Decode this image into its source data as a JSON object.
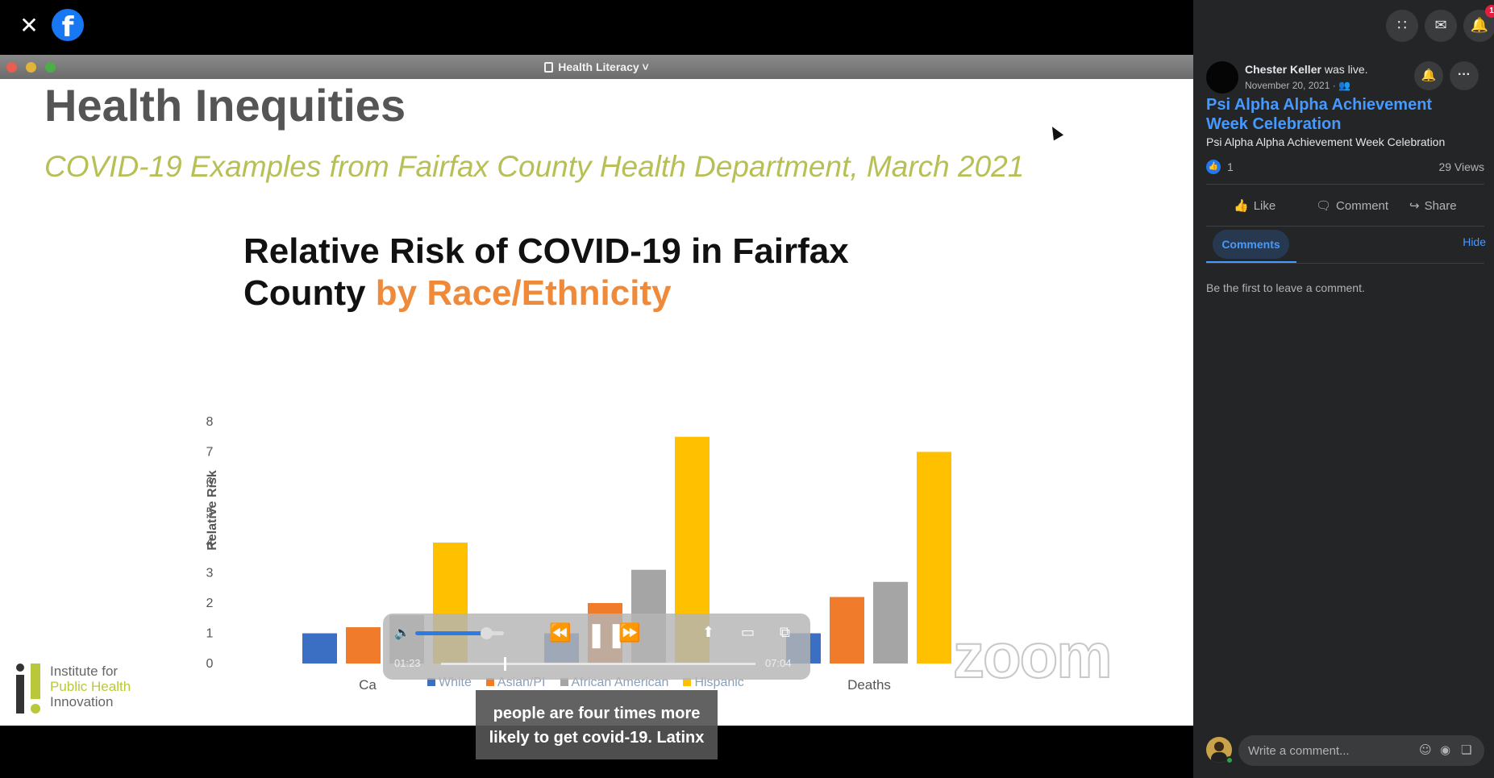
{
  "viewer": {
    "close_icon": "close-icon",
    "fb_logo": "f"
  },
  "slide_window": {
    "title": "Health Literacy ˅"
  },
  "slide": {
    "title": "Health Inequities",
    "subtitle": "COVID-19 Examples from Fairfax County Health Department, March 2021",
    "chart_title_part1": "Relative Risk of COVID-19 in Fairfax",
    "chart_title_part2": "County ",
    "chart_title_accent": "by Race/Ethnicity",
    "institute_line1": "Institute for",
    "institute_line2": "Public Health",
    "institute_line3": "Innovation",
    "zoom_watermark": "zoom"
  },
  "chart_data": {
    "type": "bar",
    "title": "Relative Risk of COVID-19 in Fairfax County by Race/Ethnicity",
    "ylabel": "Relative Risk",
    "xlabel": "",
    "ylim": [
      0,
      8
    ],
    "yticks": [
      0,
      1,
      2,
      3,
      4,
      5,
      6,
      7,
      8
    ],
    "categories": [
      "Ca",
      "",
      "Deaths"
    ],
    "series": [
      {
        "name": "White",
        "color": "#3a6fc4",
        "values": [
          1,
          1,
          1
        ]
      },
      {
        "name": "Asian/PI",
        "color": "#ef7b2b",
        "values": [
          1.2,
          2,
          2.2
        ]
      },
      {
        "name": "African American",
        "color": "#a5a5a5",
        "values": [
          1.6,
          3.1,
          2.7
        ]
      },
      {
        "name": "Hispanic",
        "color": "#ffc000",
        "values": [
          4,
          7.5,
          7
        ]
      }
    ],
    "legend_position": "bottom",
    "grid": false
  },
  "player": {
    "current_time": "01:23",
    "total_time": "07:04",
    "progress_fraction": 0.2,
    "volume_fraction": 0.8,
    "rewind_icon": "⏪",
    "pause_icon": "❚❚",
    "forward_icon": "⏩",
    "volume_icon": "🔉",
    "share_icon": "⬆",
    "airplay_icon": "▭",
    "pip_icon": "⧉"
  },
  "caption": {
    "line1": "people are four times more",
    "line2": "likely to get covid-19. Latinx"
  },
  "header": {
    "apps_icon": "∷",
    "messenger_icon": "✉",
    "notifications_icon": "🔔",
    "notification_badge": "1"
  },
  "post": {
    "author": "Chester Keller",
    "author_suffix": " was live.",
    "date": "November 20, 2021 · 👥",
    "bell_icon": "🔔",
    "more_icon": "···",
    "title": "Psi Alpha Alpha Achievement Week Celebration",
    "description": "Psi Alpha Alpha Achievement Week Celebration",
    "like_count": "1",
    "views": "29 Views",
    "like_label": "Like",
    "comment_label": "Comment",
    "share_label": "Share"
  },
  "comments": {
    "tab_label": "Comments",
    "hide_label": "Hide",
    "empty_message": "Be the first to leave a comment.",
    "input_placeholder": "Write a comment..."
  }
}
